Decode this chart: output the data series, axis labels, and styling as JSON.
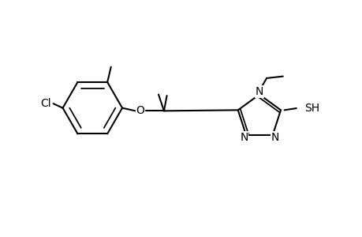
{
  "background_color": "#ffffff",
  "line_color": "#000000",
  "line_width": 1.5,
  "font_size": 10,
  "fig_width": 4.6,
  "fig_height": 3.0,
  "dpi": 100,
  "xlim": [
    0,
    10
  ],
  "ylim": [
    0,
    6.52
  ]
}
